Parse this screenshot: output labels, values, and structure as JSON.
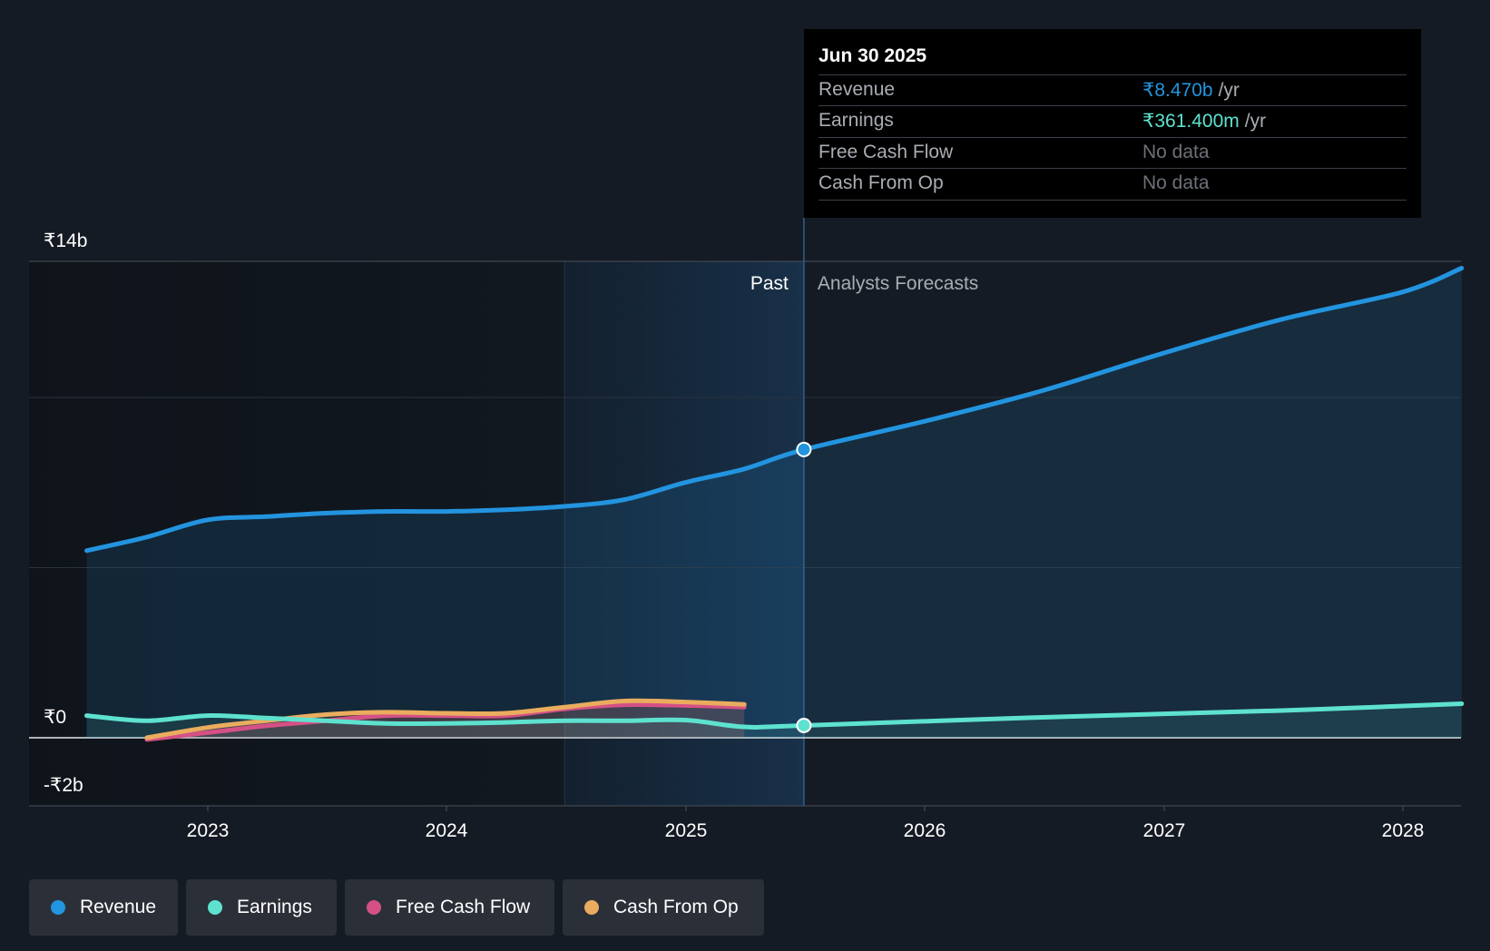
{
  "chart_data": {
    "type": "line",
    "currency": "₹",
    "y_axis": {
      "min": -2,
      "max": 14,
      "unit": "b",
      "tick_labels": [
        "₹14b",
        "₹0",
        "-₹2b"
      ]
    },
    "x_axis": {
      "tick_labels": [
        "2023",
        "2024",
        "2025",
        "2026",
        "2027",
        "2028"
      ]
    },
    "regions": {
      "past_label": "Past",
      "forecast_label": "Analysts Forecasts",
      "divider_date": "2025-06-30"
    },
    "series": [
      {
        "name": "Revenue",
        "color": "#2394df",
        "points": [
          [
            "2022-06-30",
            5.5
          ],
          [
            "2022-09-30",
            5.9
          ],
          [
            "2022-12-31",
            6.4
          ],
          [
            "2023-03-31",
            6.5
          ],
          [
            "2023-06-30",
            6.6
          ],
          [
            "2023-09-30",
            6.65
          ],
          [
            "2023-12-31",
            6.65
          ],
          [
            "2024-03-31",
            6.7
          ],
          [
            "2024-06-30",
            6.8
          ],
          [
            "2024-09-30",
            7.0
          ],
          [
            "2024-12-31",
            7.5
          ],
          [
            "2025-03-31",
            7.9
          ],
          [
            "2025-06-30",
            8.47
          ],
          [
            "2025-12-31",
            9.3
          ],
          [
            "2026-06-30",
            10.2
          ],
          [
            "2026-12-31",
            11.3
          ],
          [
            "2027-06-30",
            12.3
          ],
          [
            "2027-12-31",
            13.1
          ],
          [
            "2028-03-31",
            13.8
          ]
        ]
      },
      {
        "name": "Earnings",
        "color": "#5ee2cf",
        "points": [
          [
            "2022-06-30",
            0.65
          ],
          [
            "2022-09-30",
            0.5
          ],
          [
            "2022-12-31",
            0.65
          ],
          [
            "2023-03-31",
            0.58
          ],
          [
            "2023-06-30",
            0.5
          ],
          [
            "2023-09-30",
            0.42
          ],
          [
            "2023-12-31",
            0.42
          ],
          [
            "2024-03-31",
            0.45
          ],
          [
            "2024-06-30",
            0.5
          ],
          [
            "2024-09-30",
            0.5
          ],
          [
            "2024-12-31",
            0.52
          ],
          [
            "2025-03-31",
            0.32
          ],
          [
            "2025-06-30",
            0.361
          ],
          [
            "2026-06-30",
            0.6
          ],
          [
            "2027-06-30",
            0.8
          ],
          [
            "2028-03-31",
            1.0
          ]
        ]
      },
      {
        "name": "Free Cash Flow",
        "color": "#d55185",
        "points": [
          [
            "2022-09-30",
            -0.05
          ],
          [
            "2022-12-31",
            0.15
          ],
          [
            "2023-03-31",
            0.35
          ],
          [
            "2023-06-30",
            0.5
          ],
          [
            "2023-09-30",
            0.65
          ],
          [
            "2023-12-31",
            0.65
          ],
          [
            "2024-03-31",
            0.65
          ],
          [
            "2024-06-30",
            0.85
          ],
          [
            "2024-09-30",
            0.97
          ],
          [
            "2024-12-31",
            0.95
          ],
          [
            "2025-03-31",
            0.9
          ]
        ]
      },
      {
        "name": "Cash From Op",
        "color": "#eaac5e",
        "points": [
          [
            "2022-09-30",
            0.0
          ],
          [
            "2022-12-31",
            0.3
          ],
          [
            "2023-03-31",
            0.5
          ],
          [
            "2023-06-30",
            0.68
          ],
          [
            "2023-09-30",
            0.75
          ],
          [
            "2023-12-31",
            0.72
          ],
          [
            "2024-03-31",
            0.72
          ],
          [
            "2024-06-30",
            0.9
          ],
          [
            "2024-09-30",
            1.08
          ],
          [
            "2024-12-31",
            1.05
          ],
          [
            "2025-03-31",
            0.98
          ]
        ]
      }
    ],
    "grid": true,
    "legend_position": "bottom-left"
  },
  "tooltip": {
    "date": "Jun 30 2025",
    "rows": [
      {
        "label": "Revenue",
        "value": "₹8.470b",
        "unit": "/yr",
        "color": "#2394df"
      },
      {
        "label": "Earnings",
        "value": "₹361.400m",
        "unit": "/yr",
        "color": "#5ee2cf"
      },
      {
        "label": "Free Cash Flow",
        "value": "No data"
      },
      {
        "label": "Cash From Op",
        "value": "No data"
      }
    ]
  },
  "legend": [
    {
      "label": "Revenue",
      "color": "#2394df"
    },
    {
      "label": "Earnings",
      "color": "#5ee2cf"
    },
    {
      "label": "Free Cash Flow",
      "color": "#d55185"
    },
    {
      "label": "Cash From Op",
      "color": "#eaac5e"
    }
  ]
}
